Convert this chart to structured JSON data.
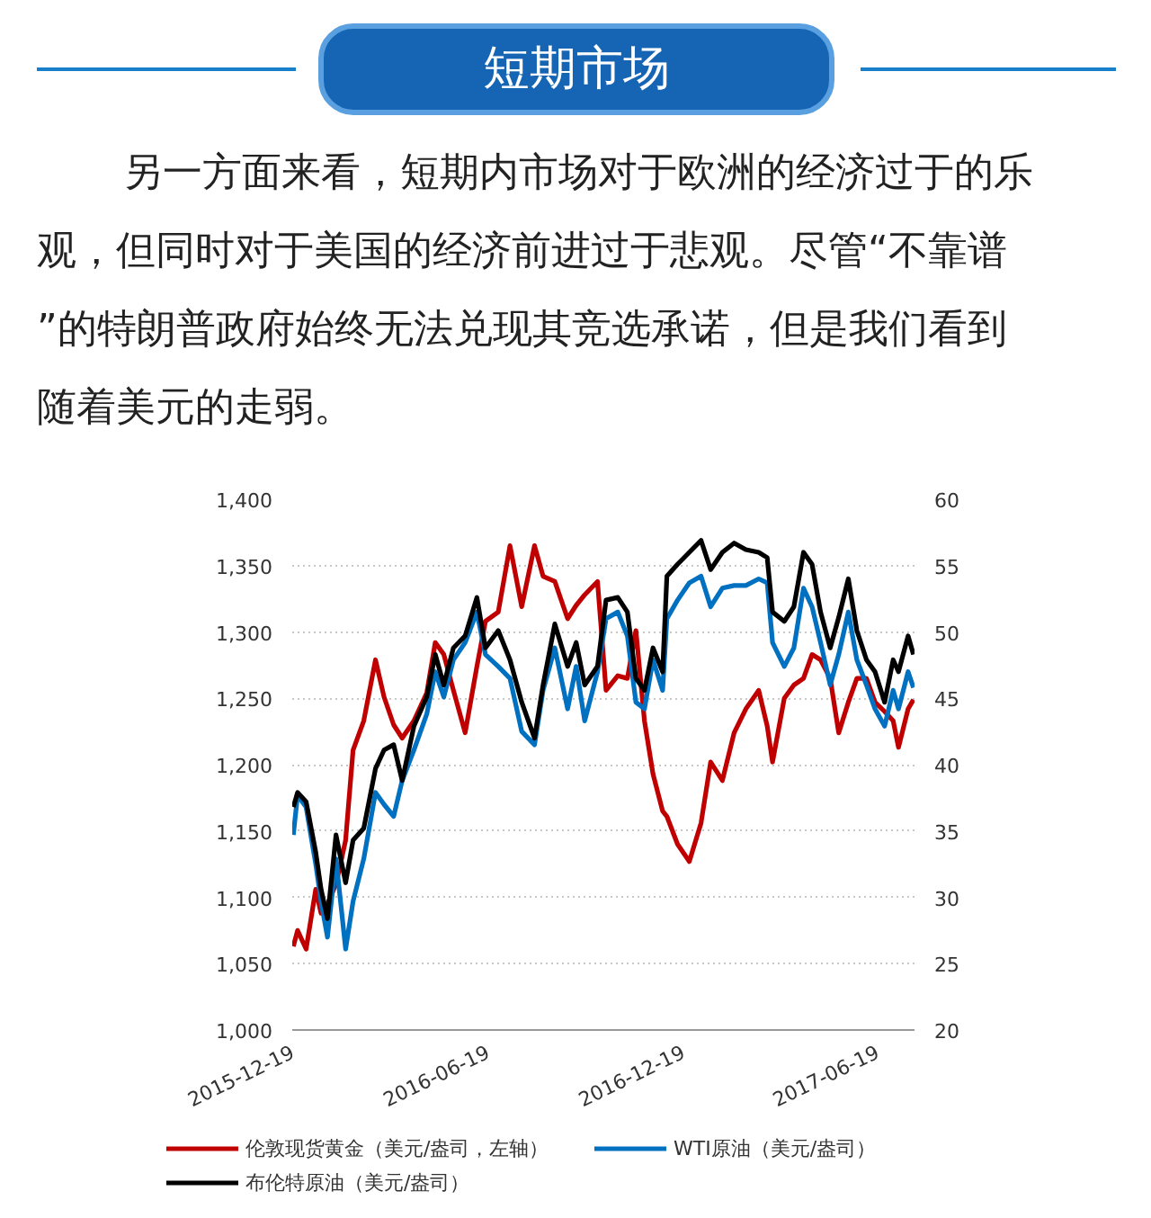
{
  "chart_data": {
    "type": "line",
    "title": "短期市场",
    "subtitle": "另一方面来看，短期内市场对于欧洲的经济过于的乐观，但同时对于美国的经济前进过于悲观。尽管“不靠谱”的特朗普政府始终无法兑现其竞选承诺，但是我们看到随着美元的走弱。",
    "x": [
      "2015-12-20",
      "2015-12-24",
      "2016-01-01",
      "2016-01-10",
      "2016-01-15",
      "2016-01-21",
      "2016-01-29",
      "2016-02-07",
      "2016-02-14",
      "2016-02-24",
      "2016-03-06",
      "2016-03-14",
      "2016-03-23",
      "2016-03-31",
      "2016-04-11",
      "2016-04-23",
      "2016-05-01",
      "2016-05-09",
      "2016-05-18",
      "2016-05-29",
      "2016-06-09",
      "2016-06-17",
      "2016-06-29",
      "2016-07-10",
      "2016-07-21",
      "2016-08-02",
      "2016-08-10",
      "2016-08-21",
      "2016-09-02",
      "2016-09-10",
      "2016-09-18",
      "2016-09-30",
      "2016-10-08",
      "2016-10-19",
      "2016-10-28",
      "2016-11-05",
      "2016-11-13",
      "2016-11-21",
      "2016-11-30",
      "2016-12-04",
      "2016-12-14",
      "2016-12-25",
      "2017-01-05",
      "2017-01-14",
      "2017-01-25",
      "2017-02-05",
      "2017-02-16",
      "2017-02-28",
      "2017-03-08",
      "2017-03-13",
      "2017-03-24",
      "2017-04-02",
      "2017-04-11",
      "2017-04-19",
      "2017-04-27",
      "2017-05-06",
      "2017-05-14",
      "2017-05-23",
      "2017-05-31",
      "2017-06-09",
      "2017-06-17",
      "2017-06-26",
      "2017-07-04",
      "2017-07-09",
      "2017-07-18",
      "2017-07-23"
    ],
    "series": [
      {
        "name": "伦敦现货黄金（美元/盎司，左轴）",
        "color": "#c00000",
        "values": [
          1063,
          1075,
          1061,
          1106,
          1088,
          1095,
          1110,
          1143,
          1211,
          1233,
          1279,
          1251,
          1230,
          1220,
          1233,
          1254,
          1292,
          1283,
          1256,
          1224,
          1274,
          1308,
          1315,
          1365,
          1319,
          1365,
          1342,
          1338,
          1310,
          1320,
          1328,
          1338,
          1256,
          1267,
          1265,
          1301,
          1233,
          1193,
          1165,
          1161,
          1140,
          1127,
          1156,
          1202,
          1188,
          1224,
          1242,
          1256,
          1229,
          1202,
          1250,
          1260,
          1265,
          1283,
          1279,
          1265,
          1224,
          1247,
          1265,
          1265,
          1247,
          1240,
          1233,
          1213,
          1242,
          1249
        ]
      },
      {
        "name": "WTI原油（美元/盎司）",
        "color": "#0070c0",
        "axis": "y2",
        "values": [
          34.7,
          37.7,
          36.8,
          32.5,
          29.7,
          27.0,
          32.9,
          26.1,
          29.7,
          32.9,
          37.9,
          37.0,
          36.1,
          38.8,
          41.1,
          43.8,
          47.0,
          45.1,
          47.9,
          49.2,
          51.5,
          48.3,
          47.4,
          46.5,
          42.5,
          41.5,
          45.6,
          48.8,
          44.2,
          47.4,
          43.3,
          47.0,
          51.0,
          51.5,
          49.7,
          44.7,
          44.2,
          47.9,
          45.6,
          51.0,
          52.4,
          53.7,
          54.2,
          51.9,
          53.3,
          53.5,
          53.5,
          54.0,
          53.7,
          49.2,
          47.4,
          48.8,
          53.3,
          51.9,
          49.2,
          46.0,
          48.3,
          51.5,
          47.9,
          46.0,
          44.2,
          42.9,
          45.6,
          44.2,
          47.0,
          45.8
        ]
      },
      {
        "name": "布伦特原油（美元/盎司）",
        "color": "#000000",
        "axis": "y2",
        "values": [
          36.8,
          37.9,
          37.2,
          33.4,
          30.6,
          28.4,
          34.7,
          31.1,
          34.3,
          35.2,
          39.7,
          41.1,
          41.5,
          38.8,
          42.9,
          45.1,
          48.3,
          46.0,
          48.8,
          49.7,
          52.6,
          48.8,
          50.1,
          47.9,
          44.7,
          42.0,
          46.0,
          50.6,
          47.4,
          49.2,
          46.0,
          47.4,
          52.4,
          52.6,
          51.5,
          46.5,
          45.6,
          48.8,
          47.0,
          54.2,
          55.1,
          56.0,
          56.9,
          54.7,
          56.0,
          56.7,
          56.2,
          56.0,
          55.6,
          51.5,
          50.8,
          51.9,
          56.0,
          55.1,
          51.5,
          48.8,
          51.1,
          54.0,
          50.1,
          47.9,
          47.0,
          44.7,
          47.9,
          47.0,
          49.7,
          48.3
        ]
      }
    ],
    "xlim": [
      "2015-12-19",
      "2017-07-24"
    ],
    "xticks": [
      "2015-12-19",
      "2016-06-19",
      "2016-12-19",
      "2017-06-19"
    ],
    "ylim": [
      1000,
      1400
    ],
    "yticks": [
      {
        "value": 1000,
        "label": "1,000"
      },
      {
        "value": 1050,
        "label": "1,050"
      },
      {
        "value": 1100,
        "label": "1,100"
      },
      {
        "value": 1150,
        "label": "1,150"
      },
      {
        "value": 1200,
        "label": "1,200"
      },
      {
        "value": 1250,
        "label": "1,250"
      },
      {
        "value": 1300,
        "label": "1,300"
      },
      {
        "value": 1350,
        "label": "1,350"
      },
      {
        "value": 1400,
        "label": "1,400"
      }
    ],
    "y2lim": [
      20,
      60
    ],
    "y2ticks": [
      20,
      25,
      30,
      35,
      40,
      45,
      50,
      55,
      60
    ],
    "grid": "y",
    "legend": "bottom",
    "line_style": "solid"
  }
}
